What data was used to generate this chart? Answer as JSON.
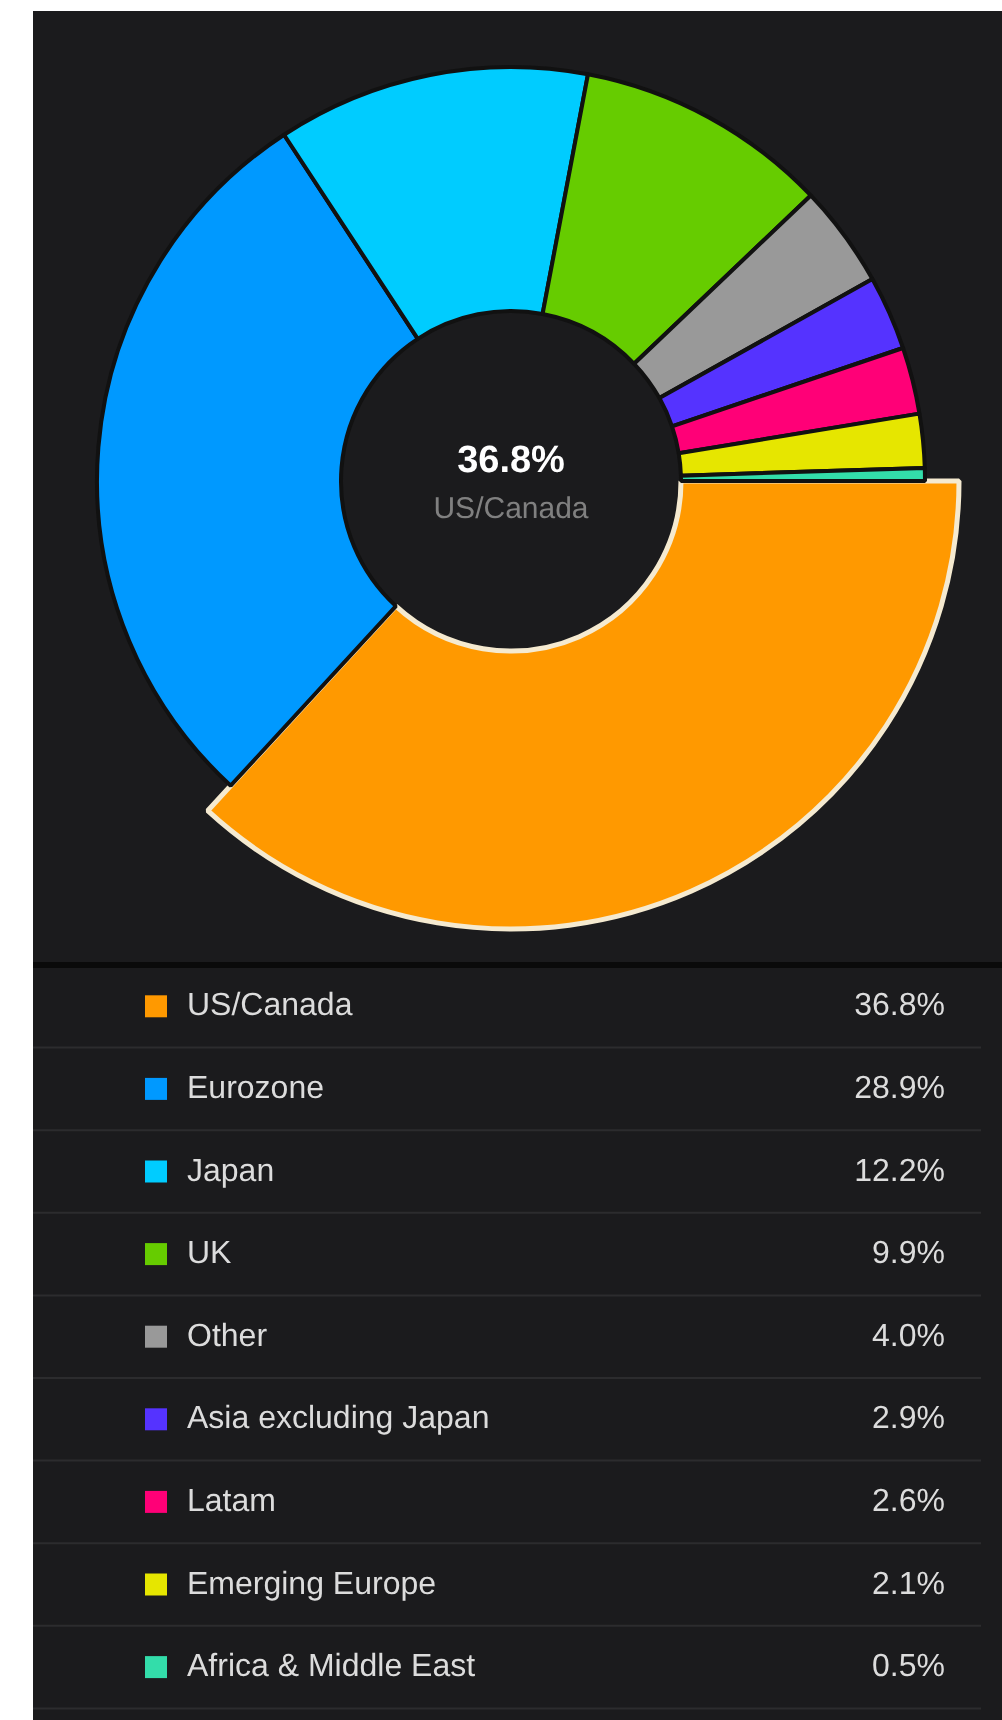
{
  "chart_data": {
    "type": "donut",
    "categories": [
      "US/Canada",
      "Eurozone",
      "Japan",
      "UK",
      "Other",
      "Asia excluding Japan",
      "Latam",
      "Emerging Europe",
      "Africa & Middle East"
    ],
    "values": [
      36.8,
      28.9,
      12.2,
      9.9,
      4.0,
      2.9,
      2.6,
      2.1,
      0.5
    ],
    "colors": [
      "#ff9900",
      "#0099ff",
      "#00ccff",
      "#66cc00",
      "#999999",
      "#5533ff",
      "#ff0077",
      "#e6e600",
      "#33ddaa"
    ],
    "value_labels": [
      "36.8%",
      "28.9%",
      "12.2%",
      "9.9%",
      "4.0%",
      "2.9%",
      "2.6%",
      "2.1%",
      "0.5%"
    ],
    "legend": "bottom"
  }
}
